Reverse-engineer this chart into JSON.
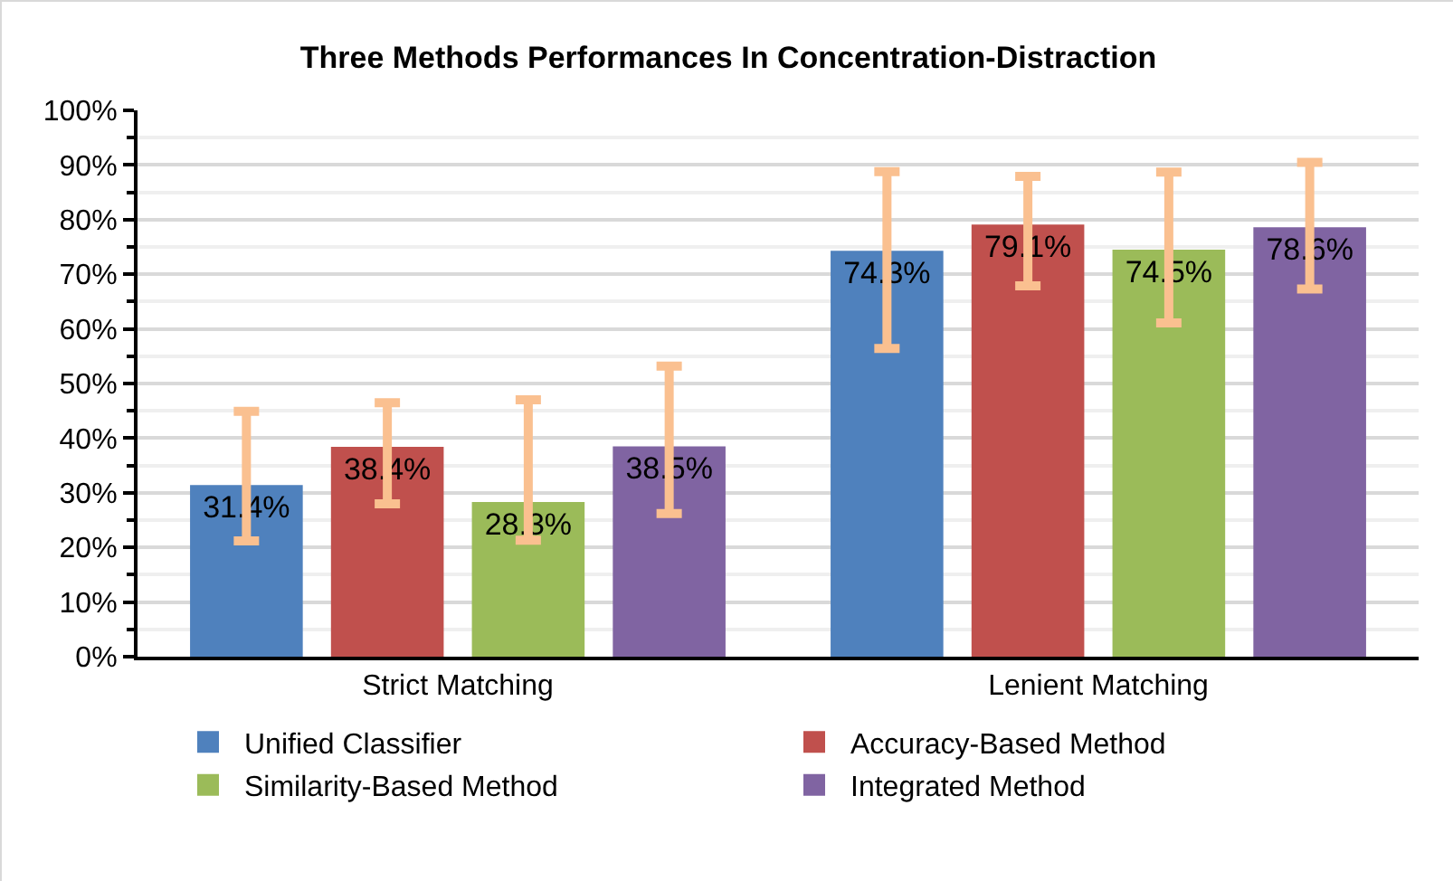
{
  "chart_data": {
    "type": "bar",
    "title": "Three Methods Performances In Concentration-Distraction",
    "categories": [
      "Strict Matching",
      "Lenient Matching"
    ],
    "series": [
      {
        "name": "Unified Classifier",
        "color": "#4f81bd",
        "values": [
          31.4,
          74.3
        ],
        "value_labels": [
          "31.4%",
          "74.3%"
        ],
        "errors": [
          [
            21.2,
            44.9
          ],
          [
            56.4,
            88.8
          ]
        ]
      },
      {
        "name": "Accuracy-Based Method",
        "color": "#c0504d",
        "values": [
          38.4,
          79.1
        ],
        "value_labels": [
          "38.4%",
          "79.1%"
        ],
        "errors": [
          [
            28.0,
            46.5
          ],
          [
            67.9,
            87.9
          ]
        ]
      },
      {
        "name": "Similarity-Based Method",
        "color": "#9bbb59",
        "values": [
          28.3,
          74.5
        ],
        "value_labels": [
          "28.3%",
          "74.5%"
        ],
        "errors": [
          [
            21.3,
            47.0
          ],
          [
            61.1,
            88.7
          ]
        ]
      },
      {
        "name": "Integrated Method",
        "color": "#8064a2",
        "values": [
          38.5,
          78.6
        ],
        "value_labels": [
          "38.5%",
          "78.6%"
        ],
        "errors": [
          [
            26.2,
            53.2
          ],
          [
            67.3,
            90.5
          ]
        ]
      }
    ],
    "ylim": [
      0,
      100
    ],
    "yticks": [
      {
        "value": 0,
        "label": "0%"
      },
      {
        "value": 10,
        "label": "10%"
      },
      {
        "value": 20,
        "label": "20%"
      },
      {
        "value": 30,
        "label": "30%"
      },
      {
        "value": 40,
        "label": "40%"
      },
      {
        "value": 50,
        "label": "50%"
      },
      {
        "value": 60,
        "label": "60%"
      },
      {
        "value": 70,
        "label": "70%"
      },
      {
        "value": 80,
        "label": "80%"
      },
      {
        "value": 90,
        "label": "90%"
      },
      {
        "value": 100,
        "label": "100%"
      }
    ],
    "grid": "y",
    "legend": "bottom"
  }
}
